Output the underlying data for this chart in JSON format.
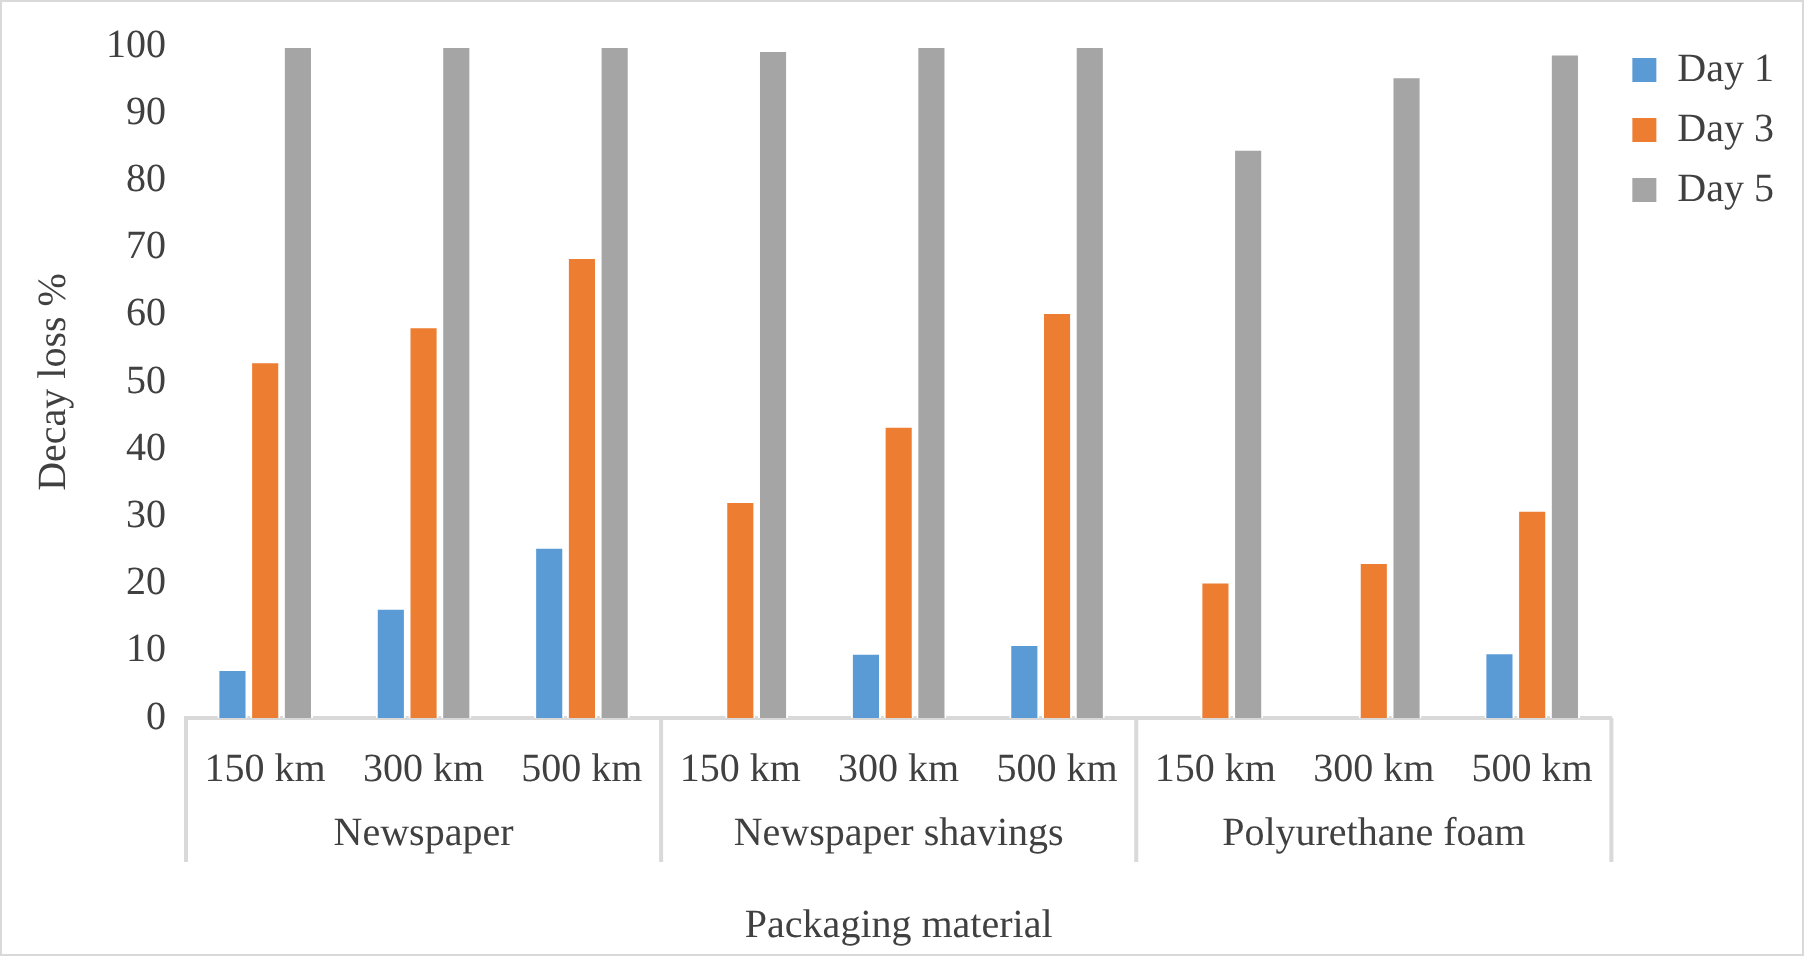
{
  "chart_data": {
    "type": "bar",
    "xlabel": "Packaging material",
    "ylabel": "Decay loss %",
    "categories": [
      "150 km",
      "300 km",
      "500 km",
      "150 km",
      "300 km",
      "500 km",
      "150 km",
      "300 km",
      "500 km"
    ],
    "annotations": [
      "Newspaper",
      "Newspaper shavings",
      "Polyurethane foam"
    ],
    "series": [
      {
        "name": "Day 1",
        "color": "#5b9bd5",
        "values": [
          7.3,
          16.4,
          25.5,
          0,
          9.7,
          11,
          0,
          0,
          9.8
        ]
      },
      {
        "name": "Day 3",
        "color": "#ed7d31",
        "values": [
          53.1,
          58.3,
          68.6,
          32.3,
          43.5,
          60.4,
          20.3,
          23.2,
          31
        ]
      },
      {
        "name": "Day 5",
        "color": "#a5a5a5",
        "values": [
          100,
          100,
          100,
          99.4,
          100,
          100,
          84.7,
          95.5,
          98.9
        ]
      }
    ],
    "ylim": [
      0,
      100
    ],
    "yticks": [
      0,
      10,
      20,
      30,
      40,
      50,
      60,
      70,
      80,
      90,
      100
    ],
    "grid": false,
    "legend": "top right"
  }
}
